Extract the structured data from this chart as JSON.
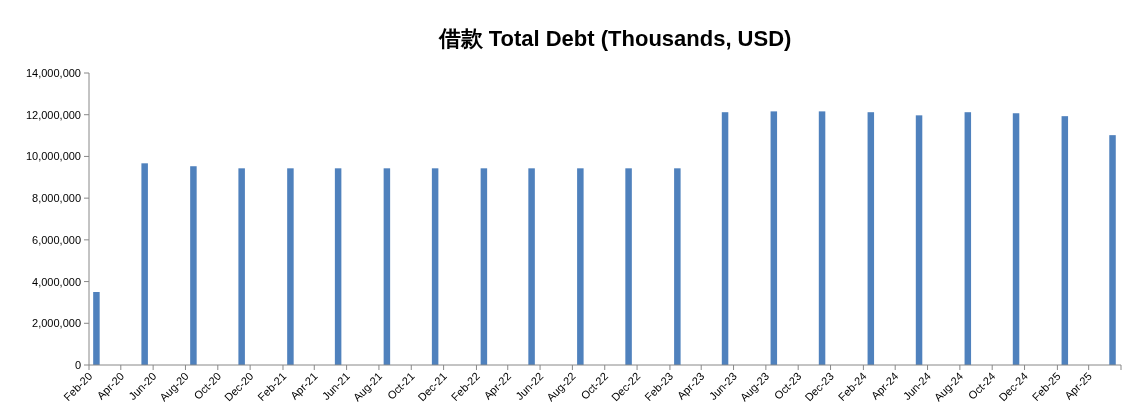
{
  "chart_data": {
    "type": "bar",
    "title": "借款 Total Debt (Thousands, USD)",
    "x": [
      "2020-02-15",
      "2020-05-16",
      "2020-08-16",
      "2020-11-15",
      "2021-02-15",
      "2021-05-16",
      "2021-08-16",
      "2021-11-15",
      "2022-02-15",
      "2022-05-16",
      "2022-08-16",
      "2022-11-15",
      "2023-02-15",
      "2023-05-16",
      "2023-08-16",
      "2023-11-15",
      "2024-02-15",
      "2024-05-16",
      "2024-08-16",
      "2024-11-15",
      "2025-02-15",
      "2025-05-16"
    ],
    "values": [
      3500000,
      9670000,
      9530000,
      9430000,
      9430000,
      9430000,
      9430000,
      9430000,
      9430000,
      9430000,
      9430000,
      9430000,
      9430000,
      12120000,
      12160000,
      12160000,
      12120000,
      11970000,
      12120000,
      12070000,
      11930000,
      11020000
    ],
    "color": "#4f81bd",
    "xlim": [
      "2020-02",
      "2025-06"
    ],
    "xticks": [
      {
        "value": "2020-02",
        "label": "Feb-20"
      },
      {
        "value": "2020-04",
        "label": "Apr-20"
      },
      {
        "value": "2020-06",
        "label": "Jun-20"
      },
      {
        "value": "2020-08",
        "label": "Aug-20"
      },
      {
        "value": "2020-10",
        "label": "Oct-20"
      },
      {
        "value": "2020-12",
        "label": "Dec-20"
      },
      {
        "value": "2021-02",
        "label": "Feb-21"
      },
      {
        "value": "2021-04",
        "label": "Apr-21"
      },
      {
        "value": "2021-06",
        "label": "Jun-21"
      },
      {
        "value": "2021-08",
        "label": "Aug-21"
      },
      {
        "value": "2021-10",
        "label": "Oct-21"
      },
      {
        "value": "2021-12",
        "label": "Dec-21"
      },
      {
        "value": "2022-02",
        "label": "Feb-22"
      },
      {
        "value": "2022-04",
        "label": "Apr-22"
      },
      {
        "value": "2022-06",
        "label": "Jun-22"
      },
      {
        "value": "2022-08",
        "label": "Aug-22"
      },
      {
        "value": "2022-10",
        "label": "Oct-22"
      },
      {
        "value": "2022-12",
        "label": "Dec-22"
      },
      {
        "value": "2023-02",
        "label": "Feb-23"
      },
      {
        "value": "2023-04",
        "label": "Apr-23"
      },
      {
        "value": "2023-06",
        "label": "Jun-23"
      },
      {
        "value": "2023-08",
        "label": "Aug-23"
      },
      {
        "value": "2023-10",
        "label": "Oct-23"
      },
      {
        "value": "2023-12",
        "label": "Dec-23"
      },
      {
        "value": "2024-02",
        "label": "Feb-24"
      },
      {
        "value": "2024-04",
        "label": "Apr-24"
      },
      {
        "value": "2024-06",
        "label": "Jun-24"
      },
      {
        "value": "2024-08",
        "label": "Aug-24"
      },
      {
        "value": "2024-10",
        "label": "Oct-24"
      },
      {
        "value": "2024-12",
        "label": "Dec-24"
      },
      {
        "value": "2025-02",
        "label": "Feb-25"
      },
      {
        "value": "2025-04",
        "label": "Apr-25"
      }
    ],
    "ylim": [
      0,
      14000000
    ],
    "yticks": [
      {
        "value": 0,
        "label": "0"
      },
      {
        "value": 2000000,
        "label": "2,000,000"
      },
      {
        "value": 4000000,
        "label": "4,000,000"
      },
      {
        "value": 6000000,
        "label": "6,000,000"
      },
      {
        "value": 8000000,
        "label": "8,000,000"
      },
      {
        "value": 10000000,
        "label": "10,000,000"
      },
      {
        "value": 12000000,
        "label": "12,000,000"
      },
      {
        "value": 14000000,
        "label": "14,000,000"
      }
    ],
    "grid": false
  }
}
